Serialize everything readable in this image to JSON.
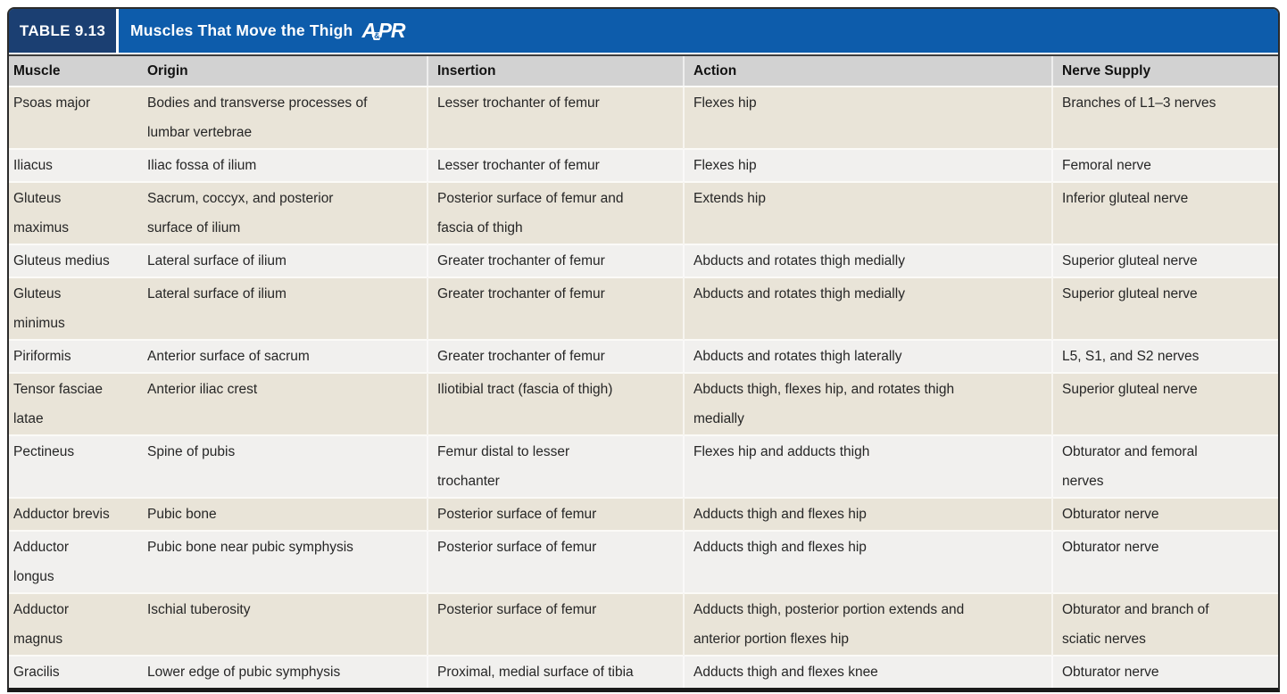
{
  "table": {
    "label": "TABLE 9.13",
    "title": "Muscles That Move the Thigh",
    "logo": {
      "first_letter": "A",
      "amp": "&",
      "rest": "PR"
    },
    "columns": [
      "Muscle",
      "Origin",
      "Insertion",
      "Action",
      "Nerve Supply"
    ],
    "rows": [
      {
        "muscle": "Psoas major",
        "origin": "Bodies and transverse processes of\nlumbar vertebrae",
        "insertion": "Lesser trochanter of femur",
        "action": "Flexes hip",
        "nerve": "Branches of L1–3 nerves"
      },
      {
        "muscle": "Iliacus",
        "origin": "Iliac fossa of ilium",
        "insertion": "Lesser trochanter of femur",
        "action": "Flexes hip",
        "nerve": "Femoral nerve"
      },
      {
        "muscle": "Gluteus\nmaximus",
        "origin": "Sacrum, coccyx, and posterior\nsurface of ilium",
        "insertion": "Posterior surface of femur and\nfascia of thigh",
        "action": "Extends hip",
        "nerve": "Inferior gluteal nerve"
      },
      {
        "muscle": "Gluteus medius",
        "origin": "Lateral surface of ilium",
        "insertion": "Greater trochanter of femur",
        "action": "Abducts and rotates thigh medially",
        "nerve": "Superior gluteal nerve"
      },
      {
        "muscle": "Gluteus\nminimus",
        "origin": "Lateral surface of ilium",
        "insertion": "Greater trochanter of femur",
        "action": "Abducts and rotates thigh medially",
        "nerve": "Superior gluteal nerve"
      },
      {
        "muscle": "Piriformis",
        "origin": "Anterior surface of sacrum",
        "insertion": "Greater trochanter of femur",
        "action": "Abducts and rotates thigh laterally",
        "nerve": "L5, S1, and S2 nerves"
      },
      {
        "muscle": "Tensor fasciae\nlatae",
        "origin": "Anterior iliac crest",
        "insertion": "Iliotibial tract (fascia of thigh)",
        "action": "Abducts thigh, flexes hip, and rotates thigh\nmedially",
        "nerve": "Superior gluteal nerve"
      },
      {
        "muscle": "Pectineus",
        "origin": "Spine of pubis",
        "insertion": "Femur distal to lesser\ntrochanter",
        "action": "Flexes hip and adducts thigh",
        "nerve": "Obturator and femoral\nnerves"
      },
      {
        "muscle": "Adductor brevis",
        "origin": "Pubic bone",
        "insertion": "Posterior surface of femur",
        "action": "Adducts thigh and flexes hip",
        "nerve": "Obturator nerve"
      },
      {
        "muscle": "Adductor\nlongus",
        "origin": "Pubic bone near pubic symphysis",
        "insertion": "Posterior surface of femur",
        "action": "Adducts thigh and flexes hip",
        "nerve": "Obturator nerve"
      },
      {
        "muscle": "Adductor\nmagnus",
        "origin": "Ischial tuberosity",
        "insertion": "Posterior surface of femur",
        "action": "Adducts thigh, posterior portion extends and\nanterior portion flexes hip",
        "nerve": "Obturator and branch of\nsciatic nerves"
      },
      {
        "muscle": "Gracilis",
        "origin": "Lower edge of pubic symphysis",
        "insertion": "Proximal, medial surface of tibia",
        "action": "Adducts thigh and flexes knee",
        "nerve": "Obturator nerve"
      }
    ]
  },
  "colors": {
    "title_navy": "#1b3f72",
    "title_blue": "#0d5cab",
    "header_gray": "#d2d2d2",
    "row_beige": "#e9e4d8",
    "row_light": "#f1f0ee",
    "text": "#262626"
  }
}
